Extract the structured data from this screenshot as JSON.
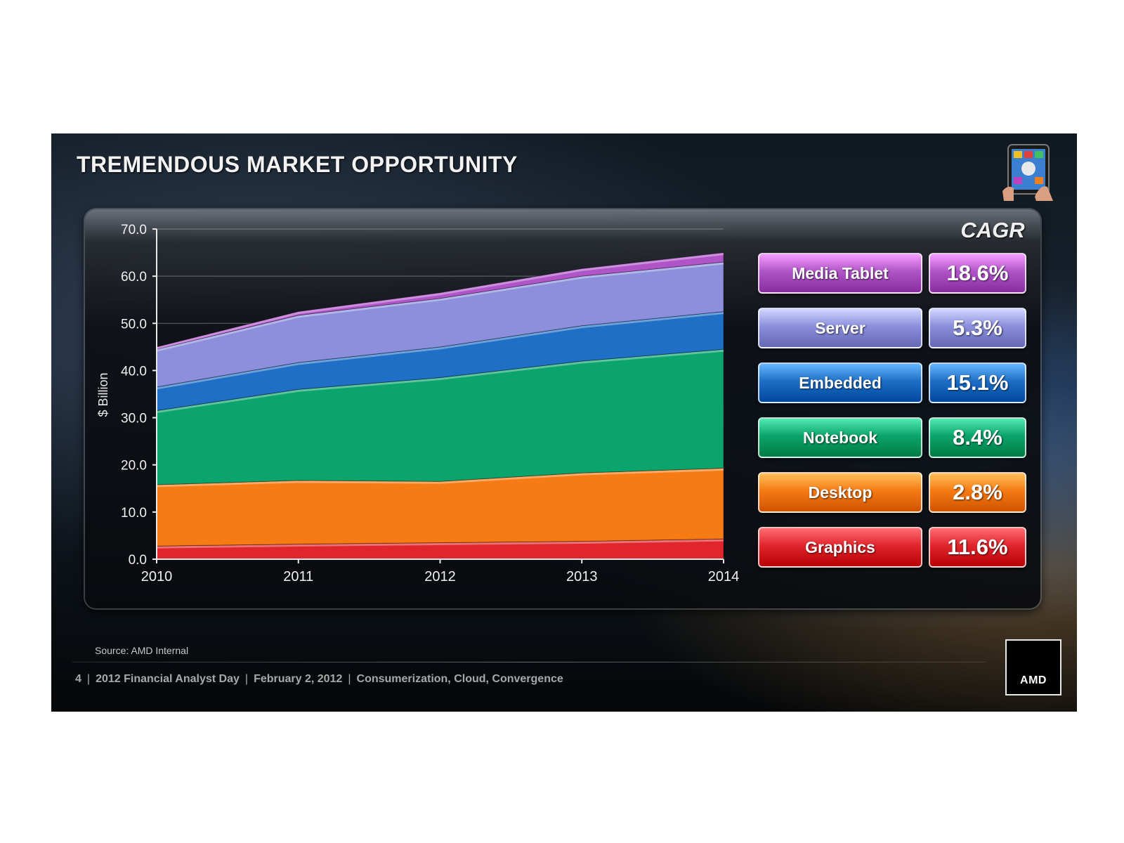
{
  "slide": {
    "title": "TREMENDOUS MARKET OPPORTUNITY",
    "source": "Source: AMD Internal",
    "footer": {
      "page": "4",
      "event": "2012 Financial Analyst Day",
      "date": "February 2, 2012",
      "theme": "Consumerization, Cloud, Convergence"
    },
    "logo_text": "AMD",
    "icons": [
      "tablet-icon",
      "amd-logo"
    ]
  },
  "cagr_header": "CAGR",
  "chart_data": {
    "type": "area",
    "stacked": true,
    "title": "",
    "xlabel": "",
    "ylabel": "$ Billion",
    "x": [
      "2010",
      "2011",
      "2012",
      "2013",
      "2014"
    ],
    "ylim": [
      0,
      70
    ],
    "yticks": [
      "0.0",
      "10.0",
      "20.0",
      "30.0",
      "40.0",
      "50.0",
      "60.0",
      "70.0"
    ],
    "grid": true,
    "legend": "right",
    "series": [
      {
        "name": "Graphics",
        "cagr": "11.6%",
        "color": "#e0262c",
        "values": [
          2.8,
          3.2,
          3.5,
          3.8,
          4.3
        ]
      },
      {
        "name": "Desktop",
        "cagr": "2.8%",
        "color": "#f77b14",
        "values": [
          13.0,
          13.5,
          13.0,
          14.5,
          15.0
        ]
      },
      {
        "name": "Notebook",
        "cagr": "8.4%",
        "color": "#0ba46c",
        "values": [
          15.7,
          19.3,
          22.0,
          23.7,
          25.2
        ]
      },
      {
        "name": "Embedded",
        "cagr": "15.1%",
        "color": "#1f6fc6",
        "values": [
          5.0,
          5.7,
          6.5,
          7.5,
          8.0
        ]
      },
      {
        "name": "Server",
        "cagr": "5.3%",
        "color": "#8b8fdc",
        "values": [
          8.0,
          10.0,
          10.3,
          10.5,
          10.5
        ]
      },
      {
        "name": "Media Tablet",
        "cagr": "18.6%",
        "color": "#b055c8",
        "values": [
          0.5,
          0.8,
          1.2,
          1.6,
          2.0
        ]
      }
    ]
  }
}
